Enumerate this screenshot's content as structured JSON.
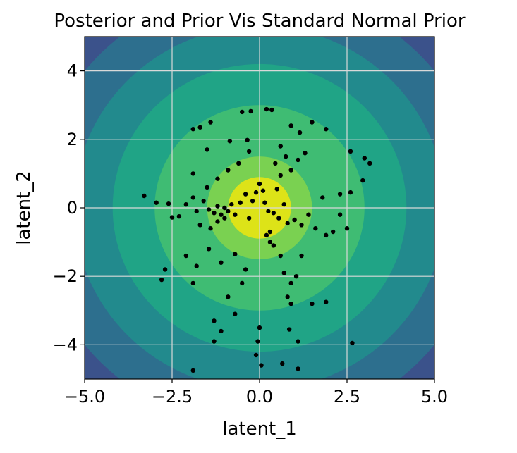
{
  "chart_data": {
    "type": "scatter",
    "title": "Posterior and Prior Vis Standard Normal Prior",
    "xlabel": "latent_1",
    "ylabel": "latent_2",
    "xlim": [
      -5,
      5
    ],
    "ylim": [
      -5,
      5
    ],
    "xticks": [
      -5.0,
      -2.5,
      0.0,
      2.5,
      5.0
    ],
    "xtick_labels": [
      "−5.0",
      "−2.5",
      "0.0",
      "2.5",
      "5.0"
    ],
    "yticks": [
      -4,
      -2,
      0,
      2,
      4
    ],
    "ytick_labels": [
      "−4",
      "−2",
      "0",
      "2",
      "4"
    ],
    "grid": true,
    "background": {
      "type": "filled-contour",
      "function": "standard normal density",
      "level_radii": [
        0.9,
        1.5,
        3.0,
        4.2,
        5.3,
        6.4
      ],
      "colors": [
        "#dde318",
        "#7ad151",
        "#3fbc73",
        "#20a486",
        "#228a8d",
        "#2d6f8e",
        "#3b528b"
      ]
    },
    "marker_color": "#000000",
    "points": [
      [
        -1.9,
        2.3
      ],
      [
        -1.7,
        2.35
      ],
      [
        -1.4,
        2.5
      ],
      [
        -0.5,
        2.8
      ],
      [
        -0.25,
        2.82
      ],
      [
        0.2,
        2.88
      ],
      [
        0.35,
        2.86
      ],
      [
        -1.5,
        1.7
      ],
      [
        -0.85,
        1.95
      ],
      [
        -0.35,
        1.98
      ],
      [
        0.6,
        1.8
      ],
      [
        0.9,
        2.4
      ],
      [
        1.15,
        2.2
      ],
      [
        1.5,
        2.5
      ],
      [
        1.9,
        2.3
      ],
      [
        2.6,
        1.65
      ],
      [
        3.0,
        1.45
      ],
      [
        3.15,
        1.3
      ],
      [
        2.95,
        0.8
      ],
      [
        2.6,
        0.45
      ],
      [
        2.3,
        0.4
      ],
      [
        1.8,
        0.3
      ],
      [
        -3.3,
        0.35
      ],
      [
        -2.95,
        0.15
      ],
      [
        -2.6,
        0.12
      ],
      [
        -2.5,
        -0.28
      ],
      [
        -2.3,
        -0.25
      ],
      [
        -2.1,
        0.1
      ],
      [
        -1.9,
        0.3
      ],
      [
        -1.8,
        -0.1
      ],
      [
        -1.6,
        0.2
      ],
      [
        -1.45,
        -0.05
      ],
      [
        -1.3,
        -0.15
      ],
      [
        -1.2,
        0.05
      ],
      [
        -1.1,
        -0.2
      ],
      [
        -1.0,
        0.0
      ],
      [
        -0.9,
        -0.1
      ],
      [
        -0.8,
        0.1
      ],
      [
        -1.7,
        -0.5
      ],
      [
        -1.4,
        -0.6
      ],
      [
        -1.2,
        -0.4
      ],
      [
        -1.0,
        -0.3
      ],
      [
        -0.7,
        -0.2
      ],
      [
        -0.55,
        0.15
      ],
      [
        -0.4,
        0.4
      ],
      [
        -0.3,
        -0.3
      ],
      [
        -0.2,
        0.2
      ],
      [
        -0.1,
        0.45
      ],
      [
        0.0,
        0.7
      ],
      [
        0.1,
        0.5
      ],
      [
        0.15,
        0.15
      ],
      [
        0.25,
        -0.1
      ],
      [
        0.4,
        -0.15
      ],
      [
        0.55,
        -0.3
      ],
      [
        0.7,
        0.1
      ],
      [
        0.8,
        -0.45
      ],
      [
        1.0,
        -0.35
      ],
      [
        1.2,
        -0.5
      ],
      [
        1.4,
        -0.2
      ],
      [
        1.6,
        -0.6
      ],
      [
        1.9,
        -0.8
      ],
      [
        2.1,
        -0.7
      ],
      [
        2.5,
        -0.6
      ],
      [
        2.3,
        -0.2
      ],
      [
        -1.9,
        1.0
      ],
      [
        -1.5,
        0.6
      ],
      [
        -1.2,
        0.85
      ],
      [
        -0.9,
        1.1
      ],
      [
        -0.6,
        1.3
      ],
      [
        -0.3,
        1.65
      ],
      [
        0.45,
        1.3
      ],
      [
        0.6,
        0.95
      ],
      [
        0.75,
        1.5
      ],
      [
        0.9,
        1.1
      ],
      [
        1.1,
        1.4
      ],
      [
        1.3,
        1.6
      ],
      [
        0.5,
        0.55
      ],
      [
        0.3,
        -0.7
      ],
      [
        0.2,
        -0.8
      ],
      [
        -2.7,
        -1.8
      ],
      [
        -2.1,
        -1.4
      ],
      [
        -1.8,
        -1.7
      ],
      [
        -1.45,
        -1.2
      ],
      [
        -1.1,
        -1.6
      ],
      [
        -0.7,
        -1.35
      ],
      [
        -0.4,
        -1.8
      ],
      [
        0.3,
        -1.0
      ],
      [
        0.4,
        -1.1
      ],
      [
        0.6,
        -1.4
      ],
      [
        0.7,
        -1.9
      ],
      [
        0.9,
        -2.2
      ],
      [
        0.8,
        -2.6
      ],
      [
        1.05,
        -2.0
      ],
      [
        1.2,
        -1.4
      ],
      [
        -1.9,
        -2.2
      ],
      [
        -2.8,
        -2.1
      ],
      [
        -0.5,
        -2.2
      ],
      [
        -0.9,
        -2.6
      ],
      [
        -0.7,
        -3.1
      ],
      [
        -1.3,
        -3.3
      ],
      [
        -1.1,
        -3.6
      ],
      [
        -1.3,
        -3.9
      ],
      [
        0.9,
        -2.8
      ],
      [
        1.5,
        -2.8
      ],
      [
        1.9,
        -2.75
      ],
      [
        0.0,
        -3.5
      ],
      [
        -0.05,
        -3.9
      ],
      [
        0.85,
        -3.55
      ],
      [
        1.1,
        -3.9
      ],
      [
        2.65,
        -3.95
      ],
      [
        -0.1,
        -4.3
      ],
      [
        0.05,
        -4.6
      ],
      [
        0.65,
        -4.55
      ],
      [
        1.1,
        -4.7
      ],
      [
        -1.9,
        -4.75
      ]
    ]
  }
}
